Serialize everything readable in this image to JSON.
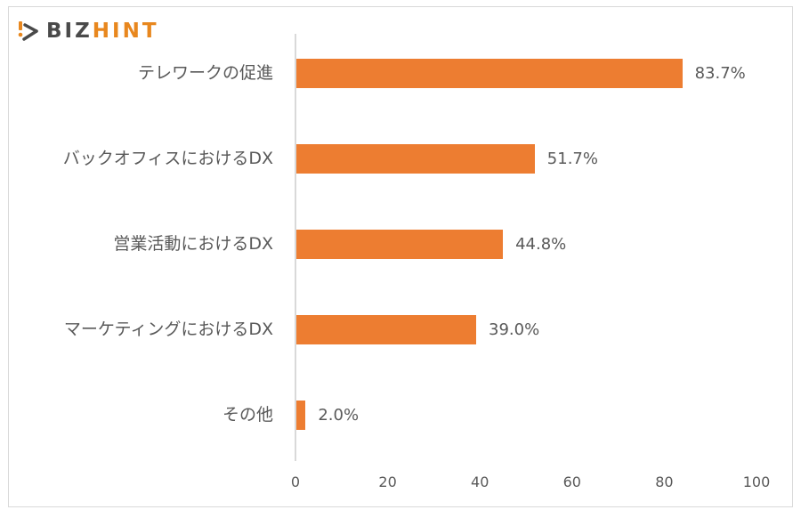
{
  "logo": {
    "text_dark": "BIZ",
    "text_accent": "HINT",
    "dark_color": "#4a4a4a",
    "accent_color": "#e8871e"
  },
  "chart_data": {
    "type": "bar",
    "orientation": "horizontal",
    "title": "",
    "xlabel": "",
    "ylabel": "",
    "categories": [
      "テレワークの促進",
      "バックオフィスにおけるDX",
      "営業活動におけるDX",
      "マーケティングにおけるDX",
      "その他"
    ],
    "values": [
      83.7,
      51.7,
      44.8,
      39.0,
      2.0
    ],
    "value_labels": [
      "83.7%",
      "51.7%",
      "44.8%",
      "39.0%",
      "2.0%"
    ],
    "xlim": [
      0,
      100
    ],
    "xticks": [
      "0",
      "20",
      "40",
      "60",
      "80",
      "100"
    ],
    "grid": false,
    "legend": null,
    "bar_color": "#ed7d31"
  }
}
